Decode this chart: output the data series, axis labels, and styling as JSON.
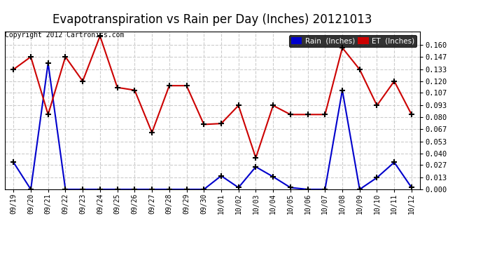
{
  "title": "Evapotranspiration vs Rain per Day (Inches) 20121013",
  "copyright": "Copyright 2012 Cartronics.com",
  "x_labels": [
    "09/19",
    "09/20",
    "09/21",
    "09/22",
    "09/23",
    "09/24",
    "09/25",
    "09/26",
    "09/27",
    "09/28",
    "09/29",
    "09/30",
    "10/01",
    "10/02",
    "10/03",
    "10/04",
    "10/05",
    "10/06",
    "10/07",
    "10/08",
    "10/09",
    "10/10",
    "10/11",
    "10/12"
  ],
  "rain_values": [
    0.03,
    0.0,
    0.14,
    0.0,
    0.0,
    0.0,
    0.0,
    0.0,
    0.0,
    0.0,
    0.0,
    0.0,
    0.015,
    0.002,
    0.025,
    0.014,
    0.002,
    0.0,
    0.0,
    0.11,
    0.0,
    0.013,
    0.03,
    0.002
  ],
  "et_values": [
    0.133,
    0.147,
    0.083,
    0.147,
    0.12,
    0.17,
    0.113,
    0.11,
    0.063,
    0.115,
    0.115,
    0.072,
    0.073,
    0.093,
    0.035,
    0.093,
    0.083,
    0.083,
    0.083,
    0.157,
    0.133,
    0.093,
    0.12,
    0.083
  ],
  "rain_color": "#0000cc",
  "et_color": "#cc0000",
  "marker_color": "#000000",
  "background_color": "#ffffff",
  "plot_bg_color": "#ffffff",
  "grid_color": "#cccccc",
  "ylim": [
    0.0,
    0.175
  ],
  "yticks": [
    0.0,
    0.013,
    0.027,
    0.04,
    0.053,
    0.067,
    0.08,
    0.093,
    0.107,
    0.12,
    0.133,
    0.147,
    0.16
  ],
  "title_fontsize": 12,
  "legend_rain_label": "Rain  (Inches)",
  "legend_et_label": "ET  (Inches)",
  "legend_rain_bg": "#0000cc",
  "legend_et_bg": "#cc0000"
}
